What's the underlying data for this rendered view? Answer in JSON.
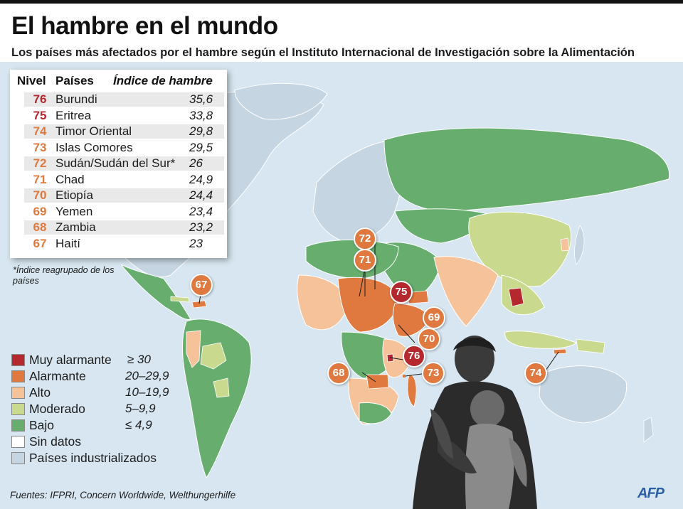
{
  "title": "El hambre en el mundo",
  "subtitle": "Los países más afectados por el hambre según el Instituto  Internacional de Investigación sobre la Alimentación",
  "ranking": {
    "headers": {
      "level": "Nivel",
      "country": "Países",
      "index": "Índice de hambre"
    },
    "rows": [
      {
        "level": "76",
        "country": "Burundi",
        "index": "35,6",
        "category": "muy_alarmante"
      },
      {
        "level": "75",
        "country": "Eritrea",
        "index": "33,8",
        "category": "muy_alarmante"
      },
      {
        "level": "74",
        "country": "Timor Oriental",
        "index": "29,8",
        "category": "alarmante"
      },
      {
        "level": "73",
        "country": "Islas Comores",
        "index": "29,5",
        "category": "alarmante"
      },
      {
        "level": "72",
        "country": "Sudán/Sudán del Sur*",
        "index": "26",
        "category": "alarmante"
      },
      {
        "level": "71",
        "country": "Chad",
        "index": "24,9",
        "category": "alarmante"
      },
      {
        "level": "70",
        "country": "Etiopía",
        "index": "24,4",
        "category": "alarmante"
      },
      {
        "level": "69",
        "country": "Yemen",
        "index": "23,4",
        "category": "alarmante"
      },
      {
        "level": "68",
        "country": "Zambia",
        "index": "23,2",
        "category": "alarmante"
      },
      {
        "level": "67",
        "country": "Haití",
        "index": "23",
        "category": "alarmante"
      }
    ]
  },
  "footnote": "*Índice reagrupado de los países",
  "legend": [
    {
      "label": "Muy alarmante",
      "range": "≥ 30",
      "color": "#b5282e"
    },
    {
      "label": "Alarmante",
      "range": "20–29,9",
      "color": "#e0793f"
    },
    {
      "label": "Alto",
      "range": "10–19,9",
      "color": "#f6c29a"
    },
    {
      "label": "Moderado",
      "range": "5–9,9",
      "color": "#c9d98e"
    },
    {
      "label": "Bajo",
      "range": "≤ 4,9",
      "color": "#66ad6e"
    },
    {
      "label": "Sin datos",
      "range": "",
      "color": "#ffffff"
    },
    {
      "label": "Países industrializados",
      "range": "",
      "color": "#c6d5e2"
    }
  ],
  "map_badges": [
    "76",
    "75",
    "74",
    "73",
    "72",
    "71",
    "70",
    "69",
    "68",
    "67"
  ],
  "colors": {
    "muy_alarmante": "#b5282e",
    "alarmante": "#e0793f",
    "alto": "#f6c29a",
    "moderado": "#c9d98e",
    "bajo": "#66ad6e",
    "sin_datos": "#ffffff",
    "industrializados": "#c6d5e2",
    "ocean": "#d7e6f0"
  },
  "source": "Fuentes: IFPRI, Concern Worldwide, Welthungerhilfe",
  "logo": "AFP"
}
